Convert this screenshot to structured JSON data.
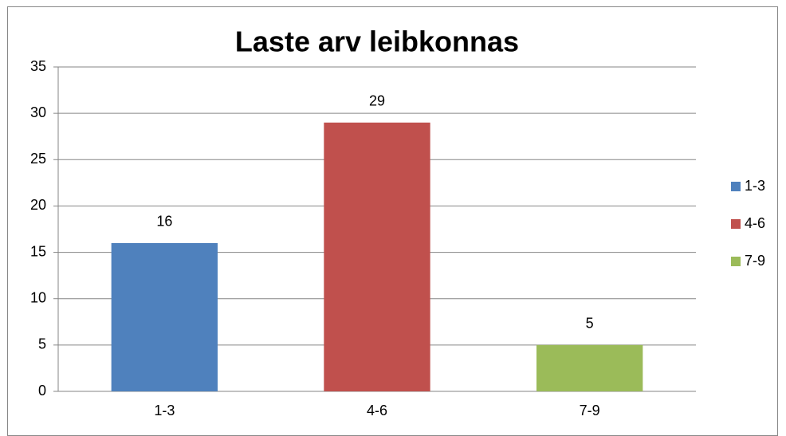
{
  "chart_data": {
    "type": "bar",
    "title": "Laste arv leibkonnas",
    "categories": [
      "1-3",
      "4-6",
      "7-9"
    ],
    "values": [
      16,
      29,
      5
    ],
    "colors": [
      "#4f81bd",
      "#c0504d",
      "#9bbb59"
    ],
    "ylim": [
      0,
      35
    ],
    "yticks": [
      0,
      5,
      10,
      15,
      20,
      25,
      30,
      35
    ],
    "grid": true,
    "legend": "right"
  }
}
